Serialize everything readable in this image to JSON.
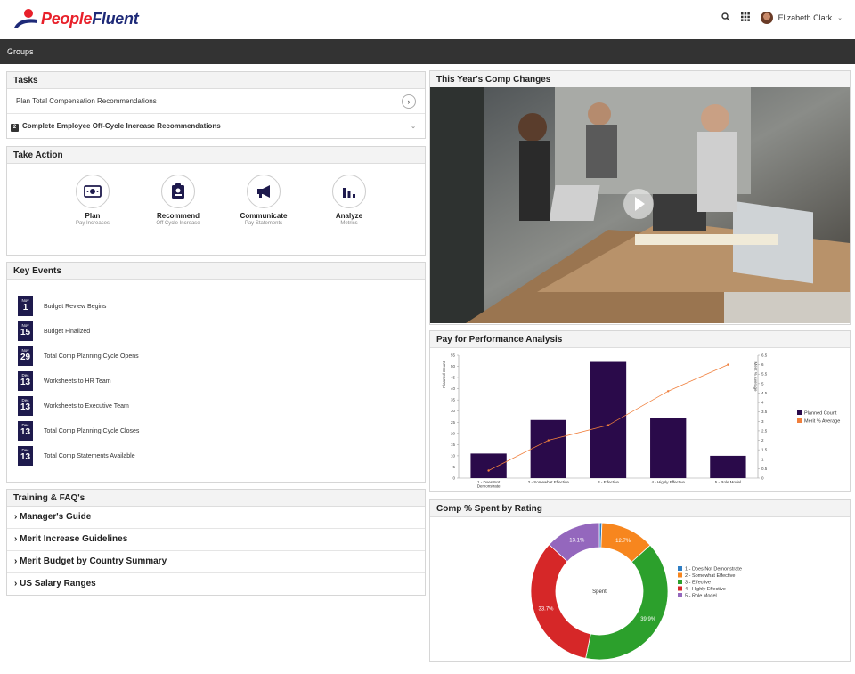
{
  "header": {
    "logo_people": "People",
    "logo_fluent": "Fluent",
    "user_name": "Elizabeth Clark",
    "icons": [
      "search-icon",
      "apps-grid-icon",
      "avatar",
      "chevron-down-icon"
    ]
  },
  "nav": {
    "label": "Groups"
  },
  "tasks": {
    "title": "Tasks",
    "items": [
      {
        "label": "Plan Total Compensation Recommendations"
      },
      {
        "badge": "2",
        "label": "Complete Employee Off-Cycle Increase Recommendations"
      }
    ]
  },
  "take_action": {
    "title": "Take Action",
    "items": [
      {
        "title": "Plan",
        "sub": "Pay Increases",
        "icon": "money-icon"
      },
      {
        "title": "Recommend",
        "sub": "Off Cycle Increase",
        "icon": "badge-icon"
      },
      {
        "title": "Communicate",
        "sub": "Pay Statements",
        "icon": "megaphone-icon"
      },
      {
        "title": "Analyze",
        "sub": "Metrics",
        "icon": "bar-chart-icon"
      }
    ]
  },
  "key_events": {
    "title": "Key Events",
    "items": [
      {
        "month": "Nov",
        "day": "1",
        "label": "Budget Review Begins"
      },
      {
        "month": "Nov",
        "day": "15",
        "label": "Budget Finalized"
      },
      {
        "month": "Nov",
        "day": "29",
        "label": "Total Comp Planning Cycle Opens"
      },
      {
        "month": "Dec",
        "day": "13",
        "label": "Worksheets to HR Team"
      },
      {
        "month": "Dec",
        "day": "13",
        "label": "Worksheets to Executive Team"
      },
      {
        "month": "Dec",
        "day": "13",
        "label": "Total Comp Planning Cycle Closes"
      },
      {
        "month": "Dec",
        "day": "13",
        "label": "Total Comp Statements Available"
      }
    ]
  },
  "training": {
    "title": "Training & FAQ's",
    "items": [
      {
        "label": "Manager's Guide"
      },
      {
        "label": "Merit Increase Guidelines"
      },
      {
        "label": "Merit Budget by Country Summary"
      },
      {
        "label": "US Salary Ranges"
      }
    ]
  },
  "video_panel": {
    "title": "This Year's Comp Changes"
  },
  "pfp_panel": {
    "title": "Pay for Performance Analysis"
  },
  "comp_panel": {
    "title": "Comp % Spent by Rating"
  },
  "colors": {
    "brand_navy": "#1e2a78",
    "brand_red": "#e8202a",
    "bar": "#2a0a4a",
    "line": "#f07f3c"
  },
  "chart_data": [
    {
      "type": "bar",
      "categories": [
        "1 - Does Not Demonstrate",
        "2 - Somewhat Effective",
        "3 - Effective",
        "4 - Highly Effective",
        "5 - Role Model"
      ],
      "series": [
        {
          "name": "Planned Count",
          "type": "bar",
          "axis": "left",
          "color": "#2a0a4a",
          "values": [
            11,
            26,
            52,
            27,
            10
          ]
        },
        {
          "name": "Merit % Average",
          "type": "line",
          "axis": "right",
          "color": "#f07f3c",
          "values": [
            0.4,
            2.0,
            2.8,
            4.6,
            6.0
          ]
        }
      ],
      "ylabel": "Planned Count",
      "y2label": "Merit % Average",
      "ylim": [
        0,
        55
      ],
      "y2lim": [
        0,
        6.5
      ],
      "yticks": [
        0,
        5,
        10,
        15,
        20,
        25,
        30,
        35,
        40,
        45,
        50,
        55
      ],
      "y2ticks": [
        0,
        0.5,
        1,
        1.5,
        2,
        2.5,
        3,
        3.5,
        4,
        4.5,
        5,
        5.5,
        6,
        6.5
      ],
      "legend": "right"
    },
    {
      "type": "pie",
      "donut": true,
      "center_label": "Spent",
      "slices": [
        {
          "label": "1 - Does Not Demonstrate",
          "value": 0.6,
          "color": "#2f7ec4"
        },
        {
          "label": "2 - Somewhat Effective",
          "value": 12.7,
          "color": "#f7861e",
          "show": "12.7%"
        },
        {
          "label": "3 - Effective",
          "value": 39.9,
          "color": "#2ca02c",
          "show": "39.9%"
        },
        {
          "label": "4 - Highly Effective",
          "value": 33.7,
          "color": "#d62728",
          "show": "33.7%"
        },
        {
          "label": "5 - Role Model",
          "value": 13.1,
          "color": "#9467bd",
          "show": "13.1%"
        }
      ],
      "legend": "right"
    }
  ]
}
